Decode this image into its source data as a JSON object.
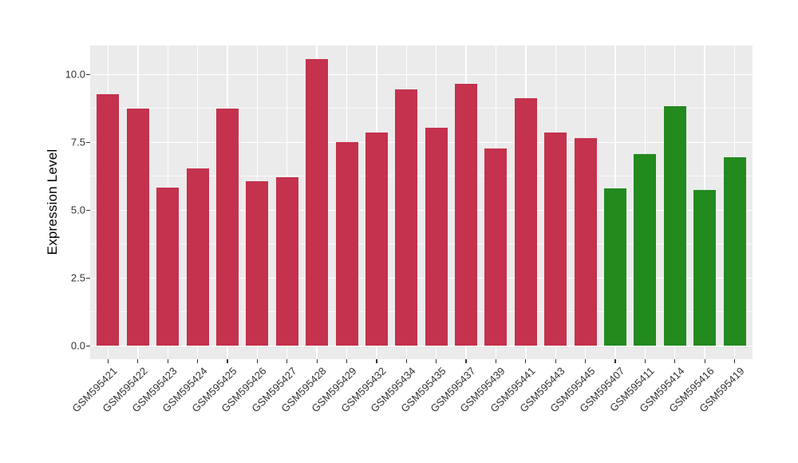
{
  "chart_data": {
    "type": "bar",
    "title": "",
    "xlabel": "",
    "ylabel": "Expression Level",
    "legend_position": "none",
    "grid": true,
    "panel_background": "#EBEBEB",
    "grid_color": "#FFFFFF",
    "ylim": [
      0,
      11.1
    ],
    "y_major_ticks": [
      0,
      2.5,
      5,
      7.5,
      10
    ],
    "y_minor_ticks": [
      1.25,
      3.75,
      6.25,
      8.75
    ],
    "y_tick_labels": [
      "0.0",
      "2.5",
      "5.0",
      "7.5",
      "10.0"
    ],
    "categories": [
      "GSM595421",
      "GSM595422",
      "GSM595423",
      "GSM595424",
      "GSM595425",
      "GSM595426",
      "GSM595427",
      "GSM595428",
      "GSM595429",
      "GSM595432",
      "GSM595434",
      "GSM595435",
      "GSM595437",
      "GSM595439",
      "GSM595441",
      "GSM595443",
      "GSM595445",
      "GSM595407",
      "GSM595411",
      "GSM595414",
      "GSM595416",
      "GSM595419"
    ],
    "values": [
      9.27,
      8.74,
      5.83,
      6.54,
      8.75,
      6.07,
      6.21,
      10.56,
      7.5,
      7.86,
      9.45,
      8.03,
      9.66,
      7.27,
      9.13,
      7.86,
      7.67,
      5.8,
      7.07,
      8.84,
      5.73,
      6.95
    ],
    "bar_group": [
      "red",
      "red",
      "red",
      "red",
      "red",
      "red",
      "red",
      "red",
      "red",
      "red",
      "red",
      "red",
      "red",
      "red",
      "red",
      "red",
      "red",
      "green",
      "green",
      "green",
      "green",
      "green"
    ],
    "colors": {
      "red": "#C4324D",
      "green": "#238A1E"
    }
  }
}
